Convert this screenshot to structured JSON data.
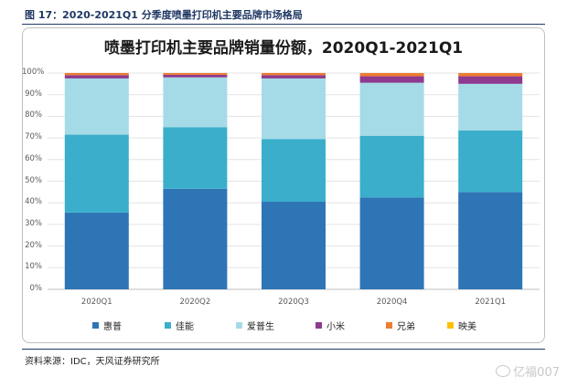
{
  "figure": {
    "caption": "图 17：2020-2021Q1 分季度喷墨打印机主要品牌市场格局",
    "source": "资料来源：IDC，天风证券研究所",
    "watermark": "亿福007"
  },
  "chart_data": {
    "type": "bar",
    "stacked": true,
    "title": "喷墨打印机主要品牌销量份额，2020Q1-2021Q1",
    "categories": [
      "2020Q1",
      "2020Q2",
      "2020Q3",
      "2020Q4",
      "2021Q1"
    ],
    "ylim": [
      0,
      100
    ],
    "yticks": [
      "0%",
      "10%",
      "20%",
      "30%",
      "40%",
      "50%",
      "60%",
      "70%",
      "80%",
      "90%",
      "100%"
    ],
    "grid": true,
    "legend_position": "bottom",
    "series": [
      {
        "name": "惠普",
        "color": "#2e75b6",
        "values": [
          35.5,
          46.5,
          40.5,
          42.5,
          45.0
        ]
      },
      {
        "name": "佳能",
        "color": "#3aaecb",
        "values": [
          36.0,
          28.5,
          29.0,
          28.5,
          28.5
        ]
      },
      {
        "name": "爱普生",
        "color": "#a5dbe6",
        "values": [
          26.0,
          23.0,
          28.0,
          24.5,
          21.5
        ]
      },
      {
        "name": "小米",
        "color": "#8e3a8e",
        "values": [
          1.5,
          1.2,
          1.5,
          3.0,
          3.5
        ]
      },
      {
        "name": "兄弟",
        "color": "#ed7d31",
        "values": [
          1.0,
          0.8,
          1.0,
          1.5,
          1.5
        ]
      },
      {
        "name": "映美",
        "color": "#ffc000",
        "values": [
          0.0,
          0.0,
          0.0,
          0.0,
          0.0
        ]
      }
    ]
  }
}
